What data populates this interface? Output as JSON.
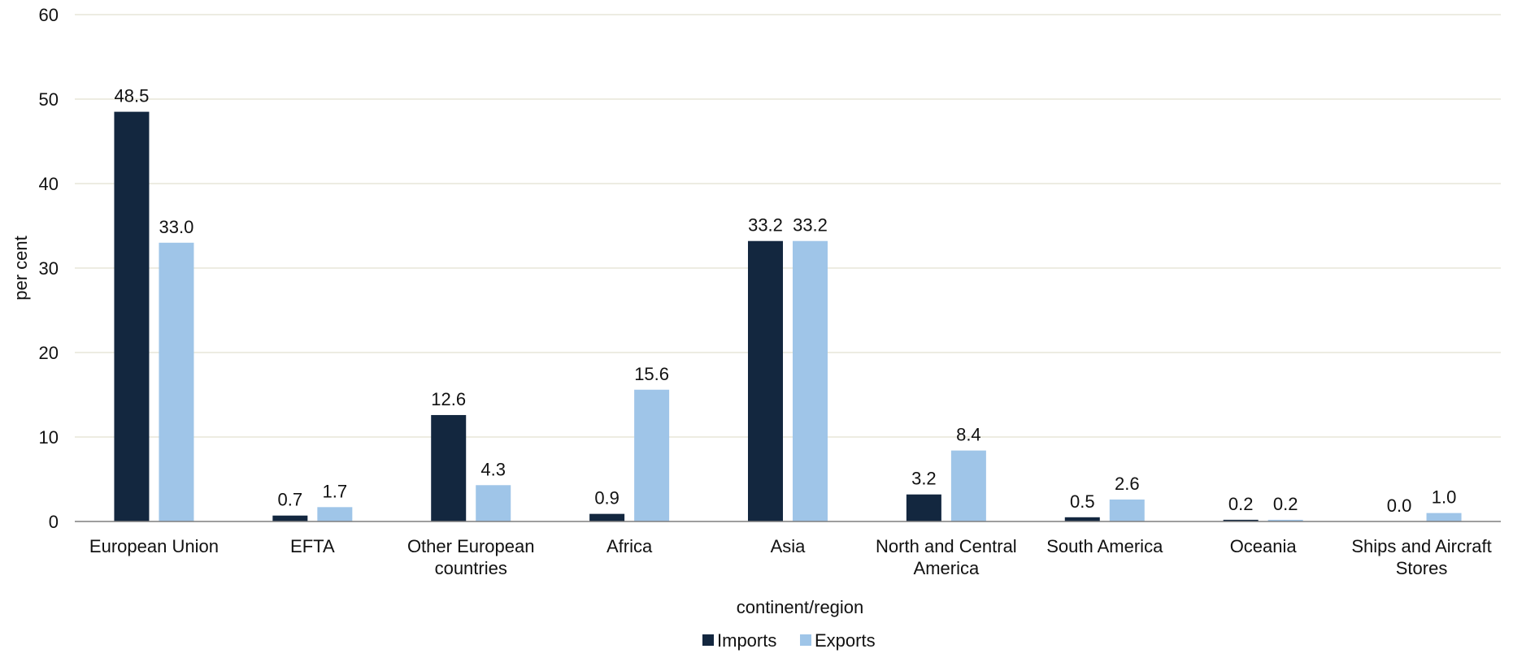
{
  "chart_data": {
    "type": "bar",
    "title": "",
    "xlabel": "continent/region",
    "ylabel": "per cent",
    "ylim": [
      0,
      60
    ],
    "yticks": [
      "0",
      "10",
      "20",
      "30",
      "40",
      "50",
      "60"
    ],
    "grid": true,
    "legend_position": "bottom",
    "categories": [
      [
        "European Union"
      ],
      [
        "EFTA"
      ],
      [
        "Other European",
        "countries"
      ],
      [
        "Africa"
      ],
      [
        "Asia"
      ],
      [
        "North and Central",
        "America"
      ],
      [
        "South America"
      ],
      [
        "Oceania"
      ],
      [
        "Ships and Aircraft",
        "Stores"
      ]
    ],
    "series": [
      {
        "name": "Imports",
        "color": "#13273f",
        "values": [
          48.5,
          0.7,
          12.6,
          0.9,
          33.2,
          3.2,
          0.5,
          0.2,
          0.0
        ],
        "labels": [
          "48.5",
          "0.7",
          "12.6",
          "0.9",
          "33.2",
          "3.2",
          "0.5",
          "0.2",
          "0.0"
        ]
      },
      {
        "name": "Exports",
        "color": "#9fc5e8",
        "values": [
          33.0,
          1.7,
          4.3,
          15.6,
          33.2,
          8.4,
          2.6,
          0.2,
          1.0
        ],
        "labels": [
          "33.0",
          "1.7",
          "4.3",
          "15.6",
          "33.2",
          "8.4",
          "2.6",
          "0.2",
          "1.0"
        ]
      }
    ],
    "colors": {
      "grid": "#e7e6d9",
      "axis": "#7f7f7f"
    }
  }
}
